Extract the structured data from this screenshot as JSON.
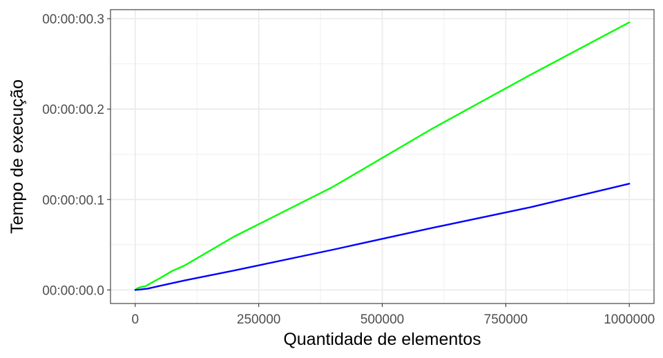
{
  "chart_data": {
    "type": "line",
    "title": "",
    "xlabel": "Quantidade de elementos",
    "ylabel": "Tempo de execução",
    "xlim": [
      -50000,
      1050000
    ],
    "ylim": [
      -0.015,
      0.31
    ],
    "x_ticks": [
      0,
      250000,
      500000,
      750000,
      1000000
    ],
    "x_tick_labels": [
      "0",
      "250000",
      "500000",
      "750000",
      "1000000"
    ],
    "y_ticks": [
      0,
      0.1,
      0.2,
      0.3
    ],
    "y_tick_labels": [
      "00:00:00.0",
      "00:00:00.1",
      "00:00:00.2",
      "00:00:00.3"
    ],
    "grid": true,
    "series": [
      {
        "color": "#00ff00",
        "x": [
          0,
          5000,
          10000,
          20000,
          50000,
          75000,
          100000,
          200000,
          400000,
          600000,
          800000,
          1000000
        ],
        "y": [
          0.0,
          0.002,
          0.003,
          0.004,
          0.013,
          0.021,
          0.027,
          0.059,
          0.114,
          0.178,
          0.238,
          0.296
        ]
      },
      {
        "color": "#0000ff",
        "x": [
          0,
          10000,
          25000,
          50000,
          100000,
          200000,
          400000,
          600000,
          800000,
          1000000
        ],
        "y": [
          0.0,
          0.0005,
          0.0015,
          0.0045,
          0.0105,
          0.0215,
          0.0445,
          0.0685,
          0.0915,
          0.1175
        ]
      }
    ]
  }
}
